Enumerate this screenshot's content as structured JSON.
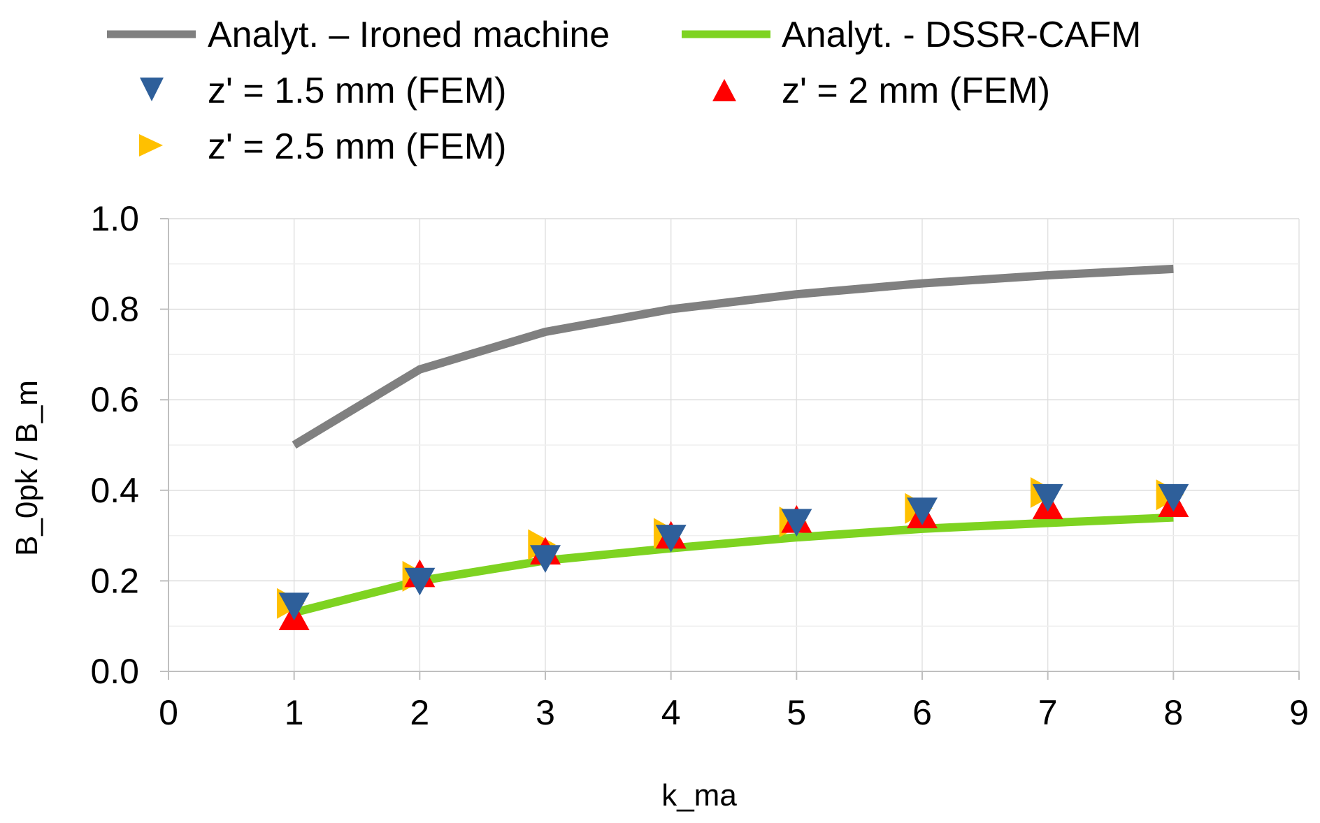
{
  "chart_data": {
    "type": "line",
    "title": "",
    "xlabel": "k_ma",
    "ylabel": "B_0pk / B_m",
    "xlim": [
      0,
      9
    ],
    "ylim": [
      0,
      1.0
    ],
    "x_ticks": [
      "0",
      "1",
      "2",
      "3",
      "4",
      "5",
      "6",
      "7",
      "8",
      "9"
    ],
    "y_ticks": [
      "0.0",
      "0.2",
      "0.4",
      "0.6",
      "0.8",
      "1.0"
    ],
    "grid": true,
    "legend_position": "top",
    "x": [
      1,
      2,
      3,
      4,
      5,
      6,
      7,
      8
    ],
    "series": [
      {
        "name": "Analyt. – Ironed machine",
        "kind": "line",
        "color": "#808080",
        "values": [
          0.5,
          0.667,
          0.75,
          0.8,
          0.833,
          0.857,
          0.875,
          0.889
        ]
      },
      {
        "name": "Analyt. - DSSR-CAFM",
        "kind": "line",
        "color": "#7ed321",
        "values": [
          0.13,
          0.2,
          0.245,
          0.272,
          0.296,
          0.315,
          0.328,
          0.34
        ]
      },
      {
        "name": "z' = 1.5 mm (FEM)",
        "kind": "marker",
        "marker": "triangle-down",
        "color": "#2e5f9a",
        "values": [
          0.145,
          0.2,
          0.25,
          0.295,
          0.33,
          0.355,
          0.385,
          0.385
        ]
      },
      {
        "name": "z' = 2 mm (FEM)",
        "kind": "marker",
        "marker": "triangle-up",
        "color": "#ff0000",
        "values": [
          0.12,
          0.215,
          0.265,
          0.3,
          0.335,
          0.345,
          0.365,
          0.37
        ]
      },
      {
        "name": "z' = 2.5 mm (FEM)",
        "kind": "marker",
        "marker": "triangle-right",
        "color": "#ffc000",
        "values": [
          0.15,
          0.21,
          0.28,
          0.305,
          0.33,
          0.36,
          0.395,
          0.39
        ]
      }
    ]
  }
}
